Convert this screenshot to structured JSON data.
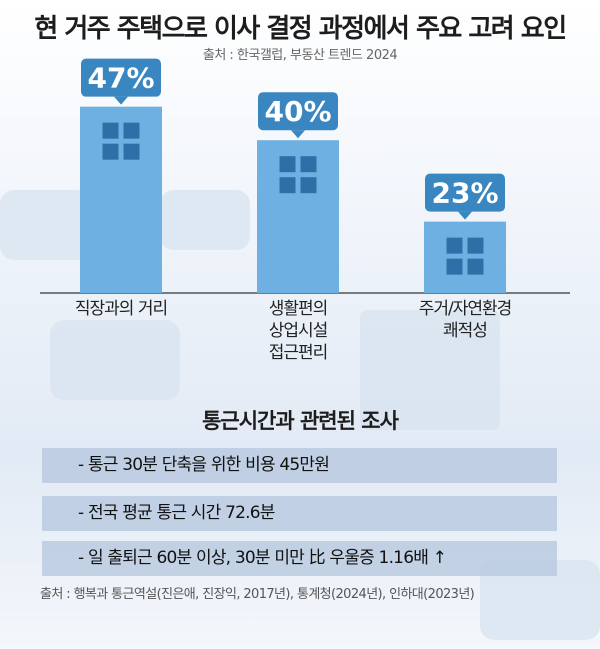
{
  "chart_data": {
    "type": "bar",
    "title": "현 거주 주택으로 이사 결정 과정에서 주요 고려 요인",
    "subtitle": "출처 : 한국갤럽, 부동산 트렌드 2024",
    "categories": [
      "직장과의 거리",
      "생활편의\n상업시설\n접근편리",
      "주거/자연환경\n쾌적성"
    ],
    "values": [
      47,
      40,
      23
    ],
    "data_labels": [
      "47%",
      "40%",
      "23%"
    ],
    "unit": "%",
    "grid": false,
    "colors": {
      "bar": "#6fb0e2",
      "label_bubble": "#3a86c0",
      "window": "#2f6fa8"
    }
  },
  "survey": {
    "title": "통근시간과 관련된 조사",
    "items": [
      "- 통근 30분 단축을 위한 비용 45만원",
      "- 전국 평균 통근 시간 72.6분",
      "- 일 출퇴근 60분 이상, 30분 미만 比 우울증 1.16배 ↑"
    ],
    "source": "출처 : 행복과 통근역설(진은애, 진장익, 2017년), 통계청(2024년), 인하대(2023년)"
  }
}
